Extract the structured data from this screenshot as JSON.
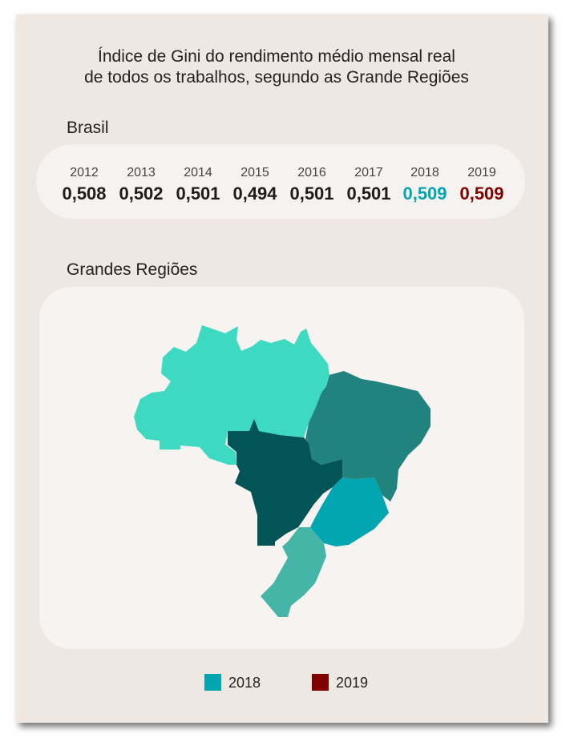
{
  "title": {
    "line1": "Índice de Gini do rendimento médio mensal real",
    "line2": "de todos os trabalhos, segundo as Grande Regiões"
  },
  "brasil": {
    "label": "Brasil",
    "years": [
      {
        "year": "2012",
        "value": "0,508"
      },
      {
        "year": "2013",
        "value": "0,502"
      },
      {
        "year": "2014",
        "value": "0,501"
      },
      {
        "year": "2015",
        "value": "0,494"
      },
      {
        "year": "2016",
        "value": "0,501"
      },
      {
        "year": "2017",
        "value": "0,501"
      },
      {
        "year": "2018",
        "value": "0,509"
      },
      {
        "year": "2019",
        "value": "0,509"
      }
    ]
  },
  "regioes": {
    "label": "Grandes Regiões",
    "region_colors": {
      "norte": "#3dd9c1",
      "nordeste": "#22827d",
      "centro_oeste": "#035457",
      "sudeste": "#01a6b1",
      "sul": "#44b5a6"
    }
  },
  "legend": {
    "items": [
      {
        "label": "2018",
        "color": "#01a6b1"
      },
      {
        "label": "2019",
        "color": "#800000"
      }
    ]
  },
  "colors": {
    "highlight_2018": "#01a6b1",
    "highlight_2019": "#800000",
    "card_bg": "#efe8e2",
    "panel_bg": "#f6f3f0"
  }
}
